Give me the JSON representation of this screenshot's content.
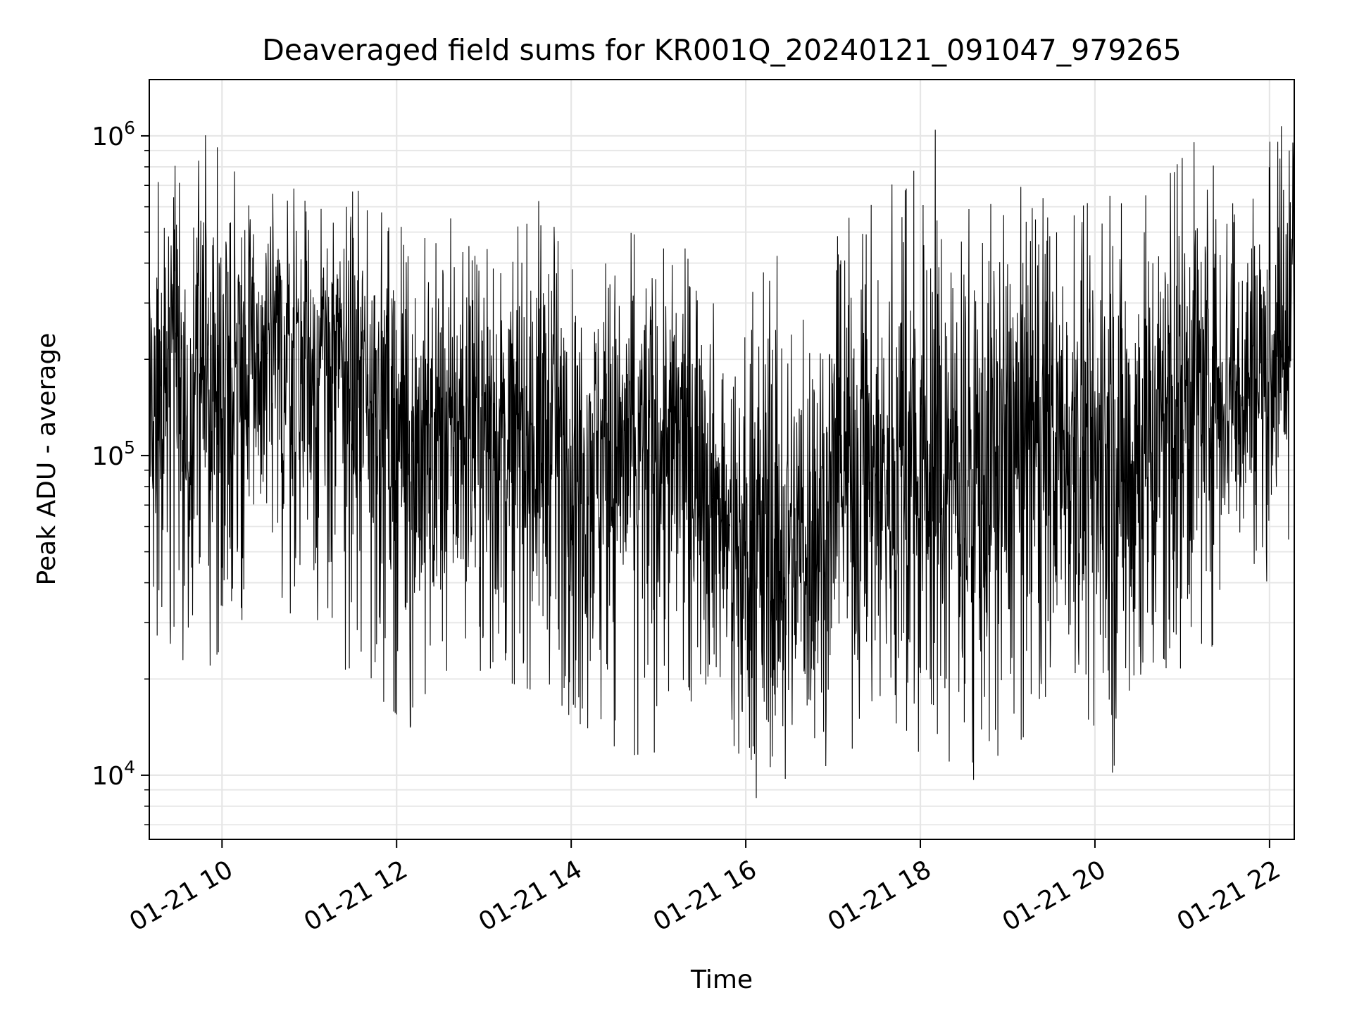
{
  "chart_data": {
    "type": "line",
    "title": "Deaveraged field sums for KR001Q_20240121_091047_979265",
    "xlabel": "Time",
    "ylabel": "Peak ADU - average",
    "x_axis": {
      "kind": "datetime",
      "min": "2024-01-21T09:10",
      "max": "2024-01-21T22:17",
      "ticks": [
        {
          "value": "2024-01-21T10:00",
          "label": "01-21 10"
        },
        {
          "value": "2024-01-21T12:00",
          "label": "01-21 12"
        },
        {
          "value": "2024-01-21T14:00",
          "label": "01-21 14"
        },
        {
          "value": "2024-01-21T16:00",
          "label": "01-21 16"
        },
        {
          "value": "2024-01-21T18:00",
          "label": "01-21 18"
        },
        {
          "value": "2024-01-21T20:00",
          "label": "01-21 20"
        },
        {
          "value": "2024-01-21T22:00",
          "label": "01-21 22"
        }
      ],
      "tick_label_rotation_deg": 30
    },
    "y_axis": {
      "scale": "log",
      "min": 6300,
      "max": 1500000,
      "major_ticks": [
        {
          "value": 10000,
          "base": "10",
          "exp": "4"
        },
        {
          "value": 100000,
          "base": "10",
          "exp": "5"
        },
        {
          "value": 1000000,
          "base": "10",
          "exp": "6"
        }
      ]
    },
    "grid": true,
    "grid_color": "#e6e6e6",
    "line_color": "#000000",
    "series": [
      {
        "x": [
          "2024-01-21T09:10",
          "2024-01-21T09:40",
          "2024-01-21T10:10",
          "2024-01-21T10:40",
          "2024-01-21T11:10",
          "2024-01-21T11:40",
          "2024-01-21T12:10",
          "2024-01-21T12:40",
          "2024-01-21T13:10",
          "2024-01-21T13:40",
          "2024-01-21T14:10",
          "2024-01-21T14:40",
          "2024-01-21T15:10",
          "2024-01-21T15:30",
          "2024-01-21T15:50",
          "2024-01-21T16:10",
          "2024-01-21T16:40",
          "2024-01-21T17:10",
          "2024-01-21T17:40",
          "2024-01-21T18:10",
          "2024-01-21T18:40",
          "2024-01-21T19:10",
          "2024-01-21T19:40",
          "2024-01-21T20:10",
          "2024-01-21T20:40",
          "2024-01-21T21:10",
          "2024-01-21T21:40",
          "2024-01-21T22:10",
          "2024-01-21T22:17"
        ],
        "median": [
          160000,
          170000,
          190000,
          200000,
          190000,
          180000,
          110000,
          115000,
          120000,
          115000,
          110000,
          115000,
          110000,
          110000,
          50000,
          48000,
          52000,
          90000,
          80000,
          85000,
          90000,
          110000,
          115000,
          90000,
          120000,
          180000,
          170000,
          210000,
          260000
        ],
        "peak": [
          650000,
          1050000,
          900000,
          700000,
          650000,
          680000,
          480000,
          560000,
          420000,
          680000,
          330000,
          500000,
          430000,
          500000,
          150000,
          500000,
          320000,
          550000,
          700000,
          1050000,
          620000,
          720000,
          560000,
          680000,
          650000,
          980000,
          720000,
          1100000,
          1000000
        ],
        "trough": [
          30000,
          18000,
          30000,
          35000,
          24000,
          19000,
          14000,
          23000,
          20000,
          18000,
          14000,
          11500,
          12000,
          21000,
          10500,
          8200,
          9500,
          12000,
          13000,
          10200,
          9600,
          13000,
          19500,
          8200,
          10500,
          19500,
          41000,
          40000,
          70000
        ]
      }
    ]
  }
}
